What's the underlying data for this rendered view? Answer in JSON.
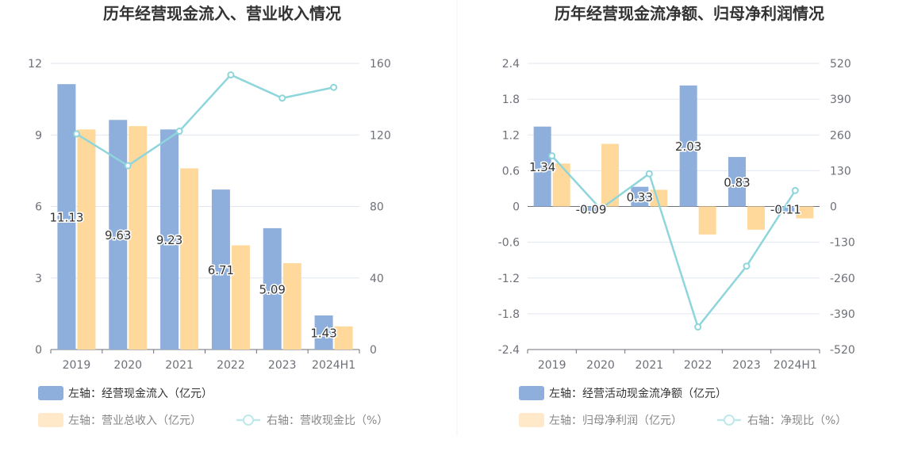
{
  "chart_data": [
    {
      "type": "bar",
      "title": "历年经营现金流入、营业收入情况",
      "categories": [
        "2019",
        "2020",
        "2021",
        "2022",
        "2023",
        "2024H1"
      ],
      "left_axis": {
        "min": 0,
        "max": 12,
        "ticks": [
          "0",
          "3",
          "6",
          "9",
          "12"
        ]
      },
      "right_axis": {
        "min": 0,
        "max": 160,
        "ticks": [
          "0",
          "40",
          "80",
          "120",
          "160"
        ]
      },
      "series": [
        {
          "name": "左轴：经营现金流入（亿元）",
          "kind": "bar",
          "axis": "left",
          "color": "#8eaedb",
          "values": [
            11.13,
            9.63,
            9.23,
            6.71,
            5.09,
            1.43
          ],
          "labels": [
            "11.13",
            "9.63",
            "9.23",
            "6.71",
            "5.09",
            "1.43"
          ]
        },
        {
          "name": "左轴：营业总收入（亿元）",
          "kind": "bar",
          "axis": "left",
          "color": "#ffd99c",
          "values": [
            9.23,
            9.37,
            7.6,
            4.37,
            3.62,
            0.97
          ]
        },
        {
          "name": "右轴：营收现金比（%）",
          "kind": "line",
          "axis": "right",
          "color": "#8fd5dc",
          "values": [
            120.6,
            102.8,
            122.1,
            153.6,
            140.6,
            146.6
          ]
        }
      ],
      "grid": true,
      "legend_position": "bottom"
    },
    {
      "type": "bar",
      "title": "历年经营现金流净额、归母净利润情况",
      "categories": [
        "2019",
        "2020",
        "2021",
        "2022",
        "2023",
        "2024H1"
      ],
      "left_axis": {
        "min": -2.4,
        "max": 2.4,
        "ticks": [
          "-2.4",
          "-1.8",
          "-1.2",
          "-0.6",
          "0",
          "0.6",
          "1.2",
          "1.8",
          "2.4"
        ]
      },
      "right_axis": {
        "min": -520,
        "max": 520,
        "ticks": [
          "-520",
          "-390",
          "-260",
          "-130",
          "0",
          "130",
          "260",
          "390",
          "520"
        ]
      },
      "series": [
        {
          "name": "左轴：经营活动现金流净额（亿元）",
          "kind": "bar",
          "axis": "left",
          "color": "#8eaedb",
          "values": [
            1.34,
            -0.09,
            0.33,
            2.03,
            0.83,
            -0.11
          ],
          "labels": [
            "1.34",
            "-0.09",
            "0.33",
            "2.03",
            "0.83",
            "-0.11"
          ]
        },
        {
          "name": "左轴：归母净利润（亿元）",
          "kind": "bar",
          "axis": "left",
          "color": "#ffd99c",
          "values": [
            0.72,
            1.05,
            0.28,
            -0.47,
            -0.39,
            -0.2
          ]
        },
        {
          "name": "右轴：净现比（%）",
          "kind": "line",
          "axis": "right",
          "color": "#8fd5dc",
          "values": [
            184,
            -9,
            119,
            -438,
            -217,
            58
          ]
        }
      ],
      "grid": true,
      "legend_position": "bottom"
    }
  ]
}
